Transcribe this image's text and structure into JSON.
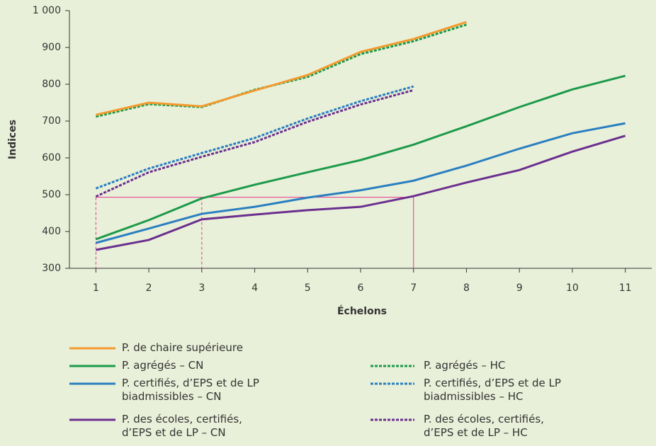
{
  "chart_data": {
    "type": "line",
    "x_label": "Échelons",
    "y_label": "Indices",
    "x": [
      1,
      2,
      3,
      4,
      5,
      6,
      7,
      8,
      9,
      10,
      11
    ],
    "xlim": [
      0.5,
      11.5
    ],
    "xticks": [
      1,
      2,
      3,
      4,
      5,
      6,
      7,
      8,
      9,
      10,
      11
    ],
    "ylim": [
      300,
      1000
    ],
    "yticks": [
      300,
      400,
      500,
      600,
      700,
      800,
      900,
      {
        "value": 1000,
        "label": "1 000"
      }
    ],
    "grid": false,
    "series": [
      {
        "name": "P. de chaire supérieure",
        "color": "#f39a2e",
        "dashed": false,
        "values": [
          717,
          750,
          740,
          783,
          825,
          888,
          923,
          969,
          null,
          null,
          null
        ]
      },
      {
        "name": "P. agrégés – CN",
        "color": "#1c9a4a",
        "dashed": false,
        "values": [
          379,
          431,
          490,
          527,
          561,
          594,
          636,
          686,
          738,
          786,
          823
        ]
      },
      {
        "name": "P. certifiés, d’EPS et de LP\nbiadmissibles – CN",
        "color": "#2a7fc1",
        "dashed": false,
        "values": [
          369,
          408,
          448,
          467,
          492,
          512,
          538,
          579,
          625,
          667,
          694
        ]
      },
      {
        "name": "P. des écoles, certifiés,\nd’EPS et de LP – CN",
        "color": "#6b2f8f",
        "dashed": false,
        "values": [
          350,
          377,
          433,
          446,
          458,
          467,
          496,
          533,
          567,
          617,
          660
        ]
      },
      {
        "name": "P. agrégés – HC",
        "color": "#1c9a4a",
        "dashed": true,
        "values": [
          712,
          746,
          738,
          785,
          820,
          882,
          917,
          962,
          null,
          null,
          null
        ]
      },
      {
        "name": "P. certifiés, d’EPS et de LP\nbiadmissibles – HC",
        "color": "#2a7fc1",
        "dashed": true,
        "values": [
          517,
          571,
          613,
          654,
          707,
          754,
          794,
          null,
          null,
          null,
          null
        ]
      },
      {
        "name": "P. des écoles, certifiés,\nd’EPS et de LP – HC",
        "color": "#6b2f8f",
        "dashed": true,
        "values": [
          495,
          561,
          603,
          643,
          698,
          745,
          784,
          null,
          null,
          null,
          null
        ]
      }
    ],
    "reference": {
      "color": "#e6358f",
      "y": 493,
      "x_solid": 7,
      "x_dashed": [
        1,
        3
      ]
    }
  }
}
